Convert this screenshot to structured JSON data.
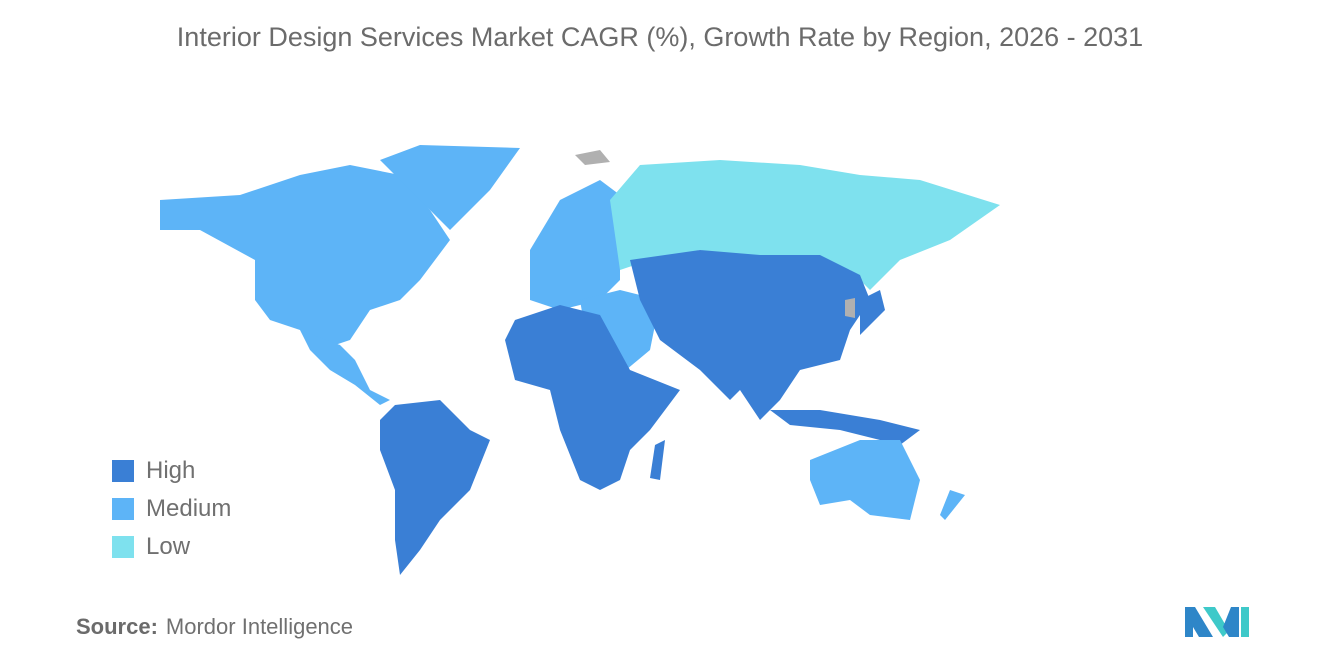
{
  "title": "Interior Design Services Market CAGR (%), Growth Rate by Region, 2026 - 2031",
  "colors": {
    "High": "#3a7fd5",
    "Medium": "#5db4f7",
    "Low": "#7ee1ee",
    "No data": "#b0b0b0"
  },
  "legend": [
    {
      "label": "High",
      "color": "#3a7fd5"
    },
    {
      "label": "Medium",
      "color": "#5db4f7"
    },
    {
      "label": "Low",
      "color": "#7ee1ee"
    }
  ],
  "regions": {
    "North America": "Medium",
    "Greenland": "Medium",
    "Central America": "Medium",
    "South America": "High",
    "Europe": "Medium",
    "Russia": "Low",
    "Middle East": "Medium",
    "Africa": "High",
    "Asia": "High",
    "Japan": "High",
    "Southeast Asia": "High",
    "Australia": "Medium",
    "New Zealand": "Medium"
  },
  "source": {
    "label": "Source:",
    "value": "Mordor Intelligence"
  }
}
